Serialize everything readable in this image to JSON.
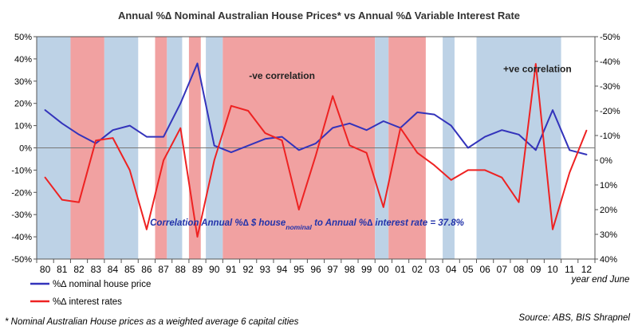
{
  "chart_data": {
    "type": "line",
    "title": "Annual %∆  Nominal Australian House Prices* vs Annual %∆  Variable Interest Rate",
    "categories": [
      "80",
      "81",
      "82",
      "83",
      "84",
      "85",
      "86",
      "87",
      "88",
      "89",
      "90",
      "91",
      "92",
      "93",
      "94",
      "95",
      "96",
      "97",
      "98",
      "99",
      "00",
      "01",
      "02",
      "03",
      "04",
      "05",
      "06",
      "07",
      "08",
      "09",
      "10",
      "11",
      "12"
    ],
    "x_label_note": "year end June",
    "y_left": {
      "ticks": [
        "50%",
        "40%",
        "30%",
        "20%",
        "10%",
        "0%",
        "-10%",
        "-20%",
        "-30%",
        "-40%",
        "-50%"
      ],
      "ylim": [
        -50,
        50
      ]
    },
    "y_right": {
      "ticks": [
        "-50%",
        "-40%",
        "-30%",
        "-20%",
        "-10%",
        "0%",
        "10%",
        "20%",
        "30%",
        "40%"
      ],
      "ylim": [
        -50,
        40
      ],
      "inverted": true
    },
    "series": [
      {
        "name": "%∆ nominal house price",
        "axis": "left",
        "color": "#3333bb",
        "values": [
          17,
          11,
          6,
          2,
          8,
          10,
          5,
          5,
          20,
          38,
          1,
          -2,
          1,
          4,
          5,
          -1,
          2,
          9,
          11,
          8,
          12,
          9,
          16,
          15,
          10,
          0,
          5,
          8,
          6,
          -1,
          17,
          -1,
          -3
        ]
      },
      {
        "name": "%∆ interest rates",
        "axis": "right",
        "color": "#ee2222",
        "values": [
          7,
          16,
          17,
          -8,
          -9,
          4,
          28,
          0,
          -13,
          31,
          0,
          -22,
          -20,
          -11,
          -8,
          20,
          -2,
          -26,
          -6,
          -3,
          19,
          -13,
          -3,
          2,
          8,
          4,
          4,
          7,
          17,
          -39,
          28,
          5,
          -12
        ]
      }
    ],
    "shading": {
      "blue_color": "#bdd2e6",
      "red_color": "#f1a1a1",
      "bands": [
        {
          "color": "blue",
          "from": 0,
          "to": 2
        },
        {
          "color": "red",
          "from": 2,
          "to": 4
        },
        {
          "color": "blue",
          "from": 4,
          "to": 6
        },
        {
          "color": "red",
          "from": 7,
          "to": 7.7
        },
        {
          "color": "blue",
          "from": 7.7,
          "to": 8.6
        },
        {
          "color": "red",
          "from": 9,
          "to": 9.7
        },
        {
          "color": "blue",
          "from": 10,
          "to": 11
        },
        {
          "color": "red",
          "from": 11,
          "to": 20
        },
        {
          "color": "blue",
          "from": 20,
          "to": 20.8
        },
        {
          "color": "red",
          "from": 20.8,
          "to": 23
        },
        {
          "color": "blue",
          "from": 24,
          "to": 24.7
        },
        {
          "color": "blue",
          "from": 26,
          "to": 31
        }
      ]
    },
    "annotations": [
      {
        "text": "-ve correlation",
        "x": 14,
        "y": 31
      },
      {
        "text": "+ve correlation",
        "x": 29.1,
        "y": 34
      }
    ],
    "correlation_text": {
      "before": "Correlation Annual %∆ $ house",
      "sub": "nominal",
      "after": " to Annual %∆ interest rate = 37.8%",
      "x": 6.2,
      "y": -35
    },
    "legend_position": "bottom-left",
    "footnote": "* Nominal Australian House prices as a weighted average 6 capital cities",
    "source": "Source: ABS, BIS Shrapnel"
  }
}
